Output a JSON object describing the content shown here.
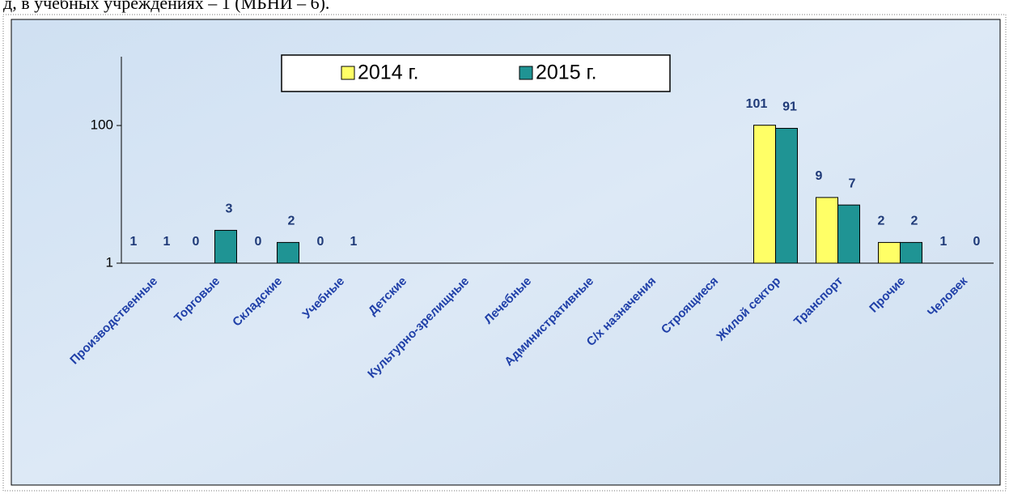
{
  "page": {
    "text": "д, в учебных учреждениях – 1 (МБНИ – 6)."
  },
  "chart_data": {
    "type": "bar",
    "log_scale": true,
    "categories": [
      "Производственные",
      "Торговые",
      "Складские",
      "Учебные",
      "Детские",
      "Культурно-зрелищные",
      "Лечебные",
      "Административные",
      "С/х назначения",
      "Строящиеся",
      "Жилой сектор",
      "Транспорт",
      "Прочие",
      "Человек"
    ],
    "series": [
      {
        "name": "2014 г.",
        "color": "#ffff66",
        "values": [
          1,
          0,
          0,
          0,
          null,
          null,
          null,
          null,
          null,
          null,
          101,
          9,
          2,
          1
        ]
      },
      {
        "name": "2015 г.",
        "color": "#1f9494",
        "values": [
          1,
          3,
          2,
          1,
          null,
          null,
          null,
          null,
          null,
          null,
          91,
          7,
          2,
          0
        ]
      }
    ],
    "ylim": [
      1,
      1000
    ],
    "yticks": [
      1,
      100
    ],
    "legend": "top"
  }
}
